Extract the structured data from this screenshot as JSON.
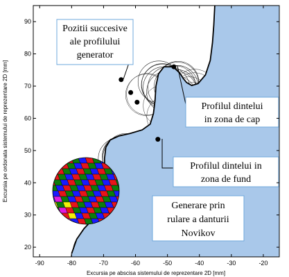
{
  "chart_data": {
    "type": "scatter",
    "title": "",
    "xlabel": "Excursia pe abscisa sistemului de reprezentare 2D [mm]",
    "ylabel": "Excursia pe ordonata sistemului de reprezentare 2D [mm]",
    "xlim": [
      -92,
      -15
    ],
    "ylim": [
      17,
      95
    ],
    "xticks": [
      -90,
      -80,
      -70,
      -60,
      -50,
      -40,
      -30,
      -20
    ],
    "yticks": [
      20,
      30,
      40,
      50,
      60,
      70,
      80,
      90
    ],
    "grid": false,
    "legend": "none",
    "colors": {
      "tooth_fill": "#a9c8ea",
      "outline": "#000000",
      "envelope_circle": "#1a1a1a",
      "annotation_border": "#6fa8dc",
      "tool_tiles": [
        "#e8141a",
        "#0c7d0c",
        "#1a1aff",
        "#f2f20a",
        "#e01ae0"
      ]
    },
    "tooth_profile": {
      "x": [
        -80,
        -78.4,
        -76.1,
        -73.5,
        -71.2,
        -69.9,
        -69.6,
        -69.7,
        -69.3,
        -67.9,
        -65.3,
        -61.7,
        -57.9,
        -55.4,
        -54.4,
        -53.9,
        -53.6,
        -52.8,
        -51.1,
        -48.2,
        -46.1,
        -45.0,
        -44.0,
        -42.4,
        -40.4,
        -38.1,
        -36.6,
        -35.9,
        -35.5,
        -35.2
      ],
      "y": [
        18,
        22.5,
        25.8,
        28.5,
        33.0,
        38.0,
        43.0,
        47.5,
        51.0,
        53.3,
        54.5,
        55.3,
        56.4,
        58.2,
        61.5,
        65.5,
        70.0,
        73.8,
        76.0,
        76.0,
        74.0,
        72.3,
        71.1,
        70.2,
        70.8,
        73.5,
        78.0,
        83.5,
        89.0,
        95.0
      ]
    },
    "tool_positions": {
      "x": [
        -64.5,
        -61.5,
        -59.5,
        -48,
        -53
      ],
      "y": [
        72,
        68,
        65,
        76,
        53.5
      ]
    },
    "annotations": [
      {
        "lines": [
          "Pozitii succesive",
          "ale profilului",
          "generator"
        ]
      },
      {
        "lines": [
          "Profilul dintelui",
          "in zona de cap"
        ]
      },
      {
        "lines": [
          "Profilul dintelui in",
          "zona de fund"
        ]
      },
      {
        "lines": [
          "Generare prin",
          "rulare a danturii",
          "Novikov"
        ]
      }
    ]
  }
}
